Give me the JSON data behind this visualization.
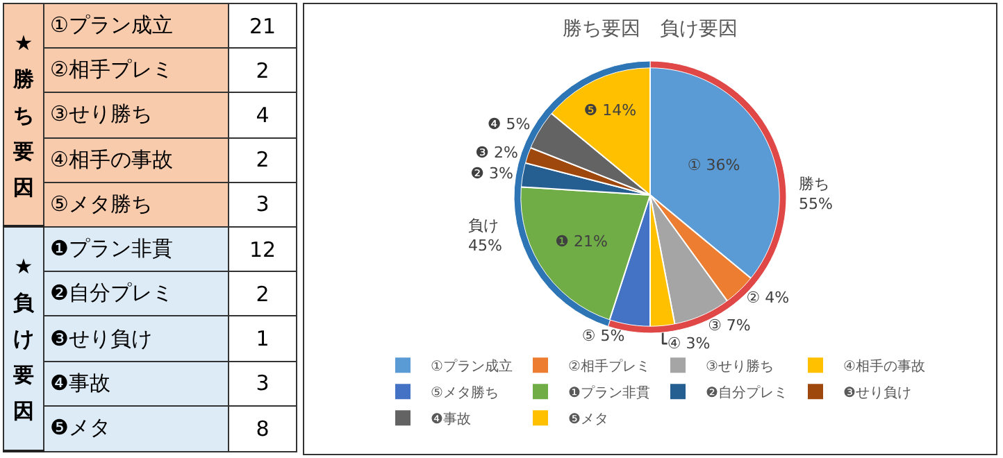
{
  "chart_data": [
    {
      "type": "other",
      "categories": [
        "①プラン成立",
        "②相手プレミ",
        "③せり勝ち",
        "④相手の事故",
        "⑤メタ勝ち",
        "❶プラン非貫",
        "❷自分プレミ",
        "❸せり負け",
        "❹事故",
        "❺メタ"
      ],
      "values": [
        21,
        2,
        4,
        2,
        3,
        12,
        2,
        1,
        3,
        8
      ],
      "data_labels": true,
      "annotations": [
        "★勝ち要因",
        "★負け要因"
      ]
    },
    {
      "type": "pie",
      "title": "勝ち要因　負け要因",
      "categories": [
        "①プラン成立",
        "②相手プレミ",
        "③せり勝ち",
        "④相手の事故",
        "⑤メタ勝ち",
        "❶プラン非貫",
        "❷自分プレミ",
        "❸せり負け",
        "❹事故",
        "❺メタ"
      ],
      "values": [
        36,
        4,
        7,
        3,
        5,
        21,
        3,
        2,
        5,
        14
      ],
      "value_labels": [
        "① 36%",
        "② 4%",
        "③ 7%",
        "④ 3%",
        "⑤ 5%",
        "❶ 21%",
        "❷ 3%",
        "❸ 2%",
        "❹ 5%",
        "❺ 14%"
      ],
      "colors": [
        "#5b9bd5",
        "#ed7d31",
        "#a5a5a5",
        "#ffc000",
        "#4472c4",
        "#70ad47",
        "#255e91",
        "#9e480e",
        "#636363",
        "#ffc000"
      ],
      "legend": "bottom"
    },
    {
      "type": "donut",
      "categories": [
        "勝ち",
        "負け"
      ],
      "values": [
        55,
        45
      ],
      "value_labels": [
        "55%",
        "45%"
      ],
      "colors": [
        "#e04848",
        "#2e75b6"
      ]
    }
  ]
}
